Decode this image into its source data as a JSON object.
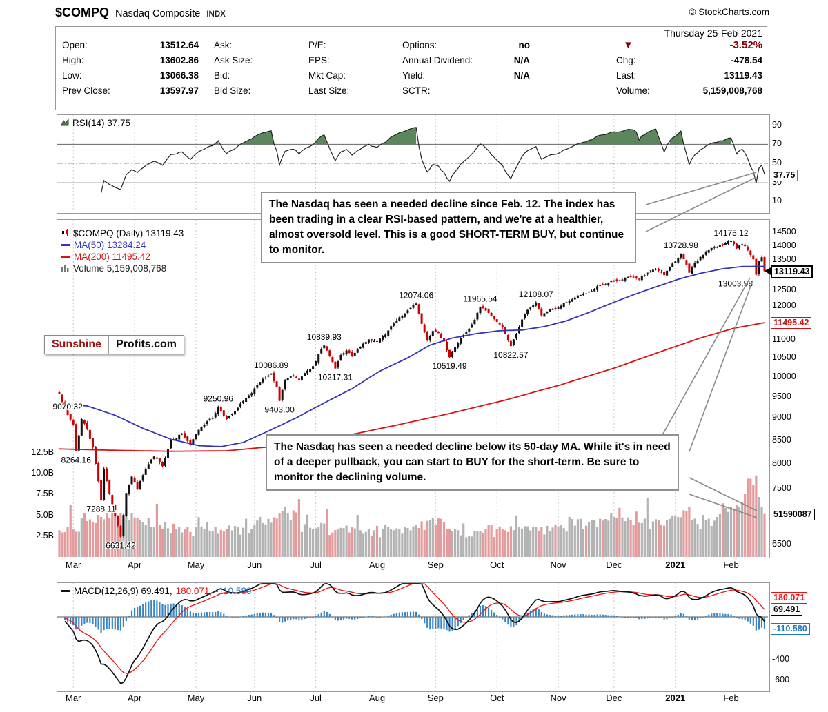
{
  "header": {
    "symbol": "$COMPQ",
    "name": "Nasdaq Composite",
    "exchange": "INDX",
    "credit": "© StockCharts.com"
  },
  "quote": {
    "date": "Thursday 25-Feb-2021",
    "columns": [
      [
        [
          "Open:",
          "13512.64"
        ],
        [
          "High:",
          "13602.86"
        ],
        [
          "Low:",
          "13066.38"
        ],
        [
          "Prev Close:",
          "13597.97"
        ]
      ],
      [
        [
          "Ask:",
          ""
        ],
        [
          "Ask Size:",
          ""
        ],
        [
          "Bid:",
          ""
        ],
        [
          "Bid Size:",
          ""
        ]
      ],
      [
        [
          "P/E:",
          ""
        ],
        [
          "EPS:",
          ""
        ],
        [
          "Mkt Cap:",
          ""
        ],
        [
          "Last Size:",
          ""
        ]
      ],
      [
        [
          "Options:",
          "no"
        ],
        [
          "Annual Dividend:",
          "N/A"
        ],
        [
          "Yield:",
          "N/A"
        ],
        [
          "SCTR:",
          ""
        ]
      ]
    ],
    "change": {
      "arrow": "▼",
      "percent": "-3.52%"
    },
    "right_rows": [
      [
        "Chg:",
        "-478.54"
      ],
      [
        "Last:",
        "13119.43"
      ],
      [
        "Volume:",
        "5,159,008,768"
      ]
    ]
  },
  "legends": {
    "rsi": "RSI(14) 37.75",
    "price": "$COMPQ (Daily) 13119.43",
    "ma50": "MA(50) 13284.24",
    "ma200": "MA(200) 11495.42",
    "volume": "Volume 5,159,008,768",
    "macd_black": "MACD(12,26,9) 69.491,",
    "macd_red": "180.071,",
    "macd_blue": "-110.580"
  },
  "boxes": {
    "rsi": "37.75",
    "last": "13119.43",
    "ma200": "11495.42",
    "volume": "51590087",
    "macd_signal": "180.071",
    "macd_line": "69.491",
    "macd_hist": "-110.580"
  },
  "callouts": {
    "box1": "The Nasdaq has seen a needed decline since Feb. 12. The index has been trading in a clear RSI-based pattern, and we're at a healthier, almost oversold level. This is a good SHORT-TERM BUY, but continue to monitor.",
    "box2": "The Nasdaq has seen a needed decline below its 50-day MA. While it's in need of a deeper pullback, you can start to BUY for the short-term. Be sure to monitor the declining volume."
  },
  "logo": {
    "first": "Sunshine",
    "second": "Profits.com"
  },
  "x_axis": {
    "months": [
      "Mar",
      "Apr",
      "May",
      "Jun",
      "Jul",
      "Aug",
      "Sep",
      "Oct",
      "Nov",
      "Dec",
      "2021",
      "Feb"
    ],
    "month_start_days": [
      5,
      27,
      49,
      70,
      92,
      114,
      135,
      157,
      179,
      199,
      221,
      241
    ],
    "total_days": 253,
    "bold_label": "2021"
  },
  "chart_data": [
    {
      "type": "line",
      "panel": "rsi",
      "name": "RSI(14)",
      "last_value": 37.75,
      "ylim": [
        0,
        100
      ],
      "right_ticks": [
        90,
        70,
        50,
        30,
        10
      ],
      "overbought": 70,
      "midline": 50,
      "oversold": 30,
      "line_color": "#222222",
      "overbought_fill": "#4a7a4a"
    },
    {
      "type": "candlestick",
      "panel": "price",
      "name": "$COMPQ (Daily)",
      "last_close": 13119.43,
      "scale": "log",
      "right_ticks": [
        14500,
        14000,
        13500,
        13000,
        12500,
        12000,
        11500,
        11000,
        10500,
        10000,
        9500,
        9000,
        8500,
        8000,
        7500,
        7000,
        6500
      ],
      "up_color": "#111111",
      "down_color": "#cc0000",
      "close_keypoints": [
        [
          0,
          9576
        ],
        [
          2,
          9220
        ],
        [
          3,
          9070.32
        ],
        [
          5,
          8850
        ],
        [
          6,
          8264.16
        ],
        [
          8,
          8970
        ],
        [
          10,
          8740
        ],
        [
          12,
          8340
        ],
        [
          14,
          7650
        ],
        [
          15,
          7288.11
        ],
        [
          16,
          7900
        ],
        [
          18,
          7400
        ],
        [
          20,
          6990
        ],
        [
          22,
          6631.42
        ],
        [
          24,
          7420
        ],
        [
          26,
          7740
        ],
        [
          28,
          7500
        ],
        [
          31,
          7900
        ],
        [
          34,
          8150
        ],
        [
          37,
          7950
        ],
        [
          40,
          8500
        ],
        [
          44,
          8640
        ],
        [
          47,
          8400
        ],
        [
          50,
          8730
        ],
        [
          53,
          8920
        ],
        [
          55,
          9000
        ],
        [
          57,
          9250.96
        ],
        [
          60,
          8970
        ],
        [
          63,
          9150
        ],
        [
          66,
          9400
        ],
        [
          69,
          9590
        ],
        [
          72,
          9870
        ],
        [
          74,
          9980
        ],
        [
          76,
          10086.89
        ],
        [
          78,
          9750
        ],
        [
          79,
          9403
        ],
        [
          81,
          9920
        ],
        [
          84,
          10020
        ],
        [
          86,
          9910
        ],
        [
          88,
          10100
        ],
        [
          91,
          10280
        ],
        [
          93,
          10600
        ],
        [
          95,
          10839.93
        ],
        [
          97,
          10550
        ],
        [
          99,
          10217.31
        ],
        [
          101,
          10580
        ],
        [
          103,
          10700
        ],
        [
          105,
          10550
        ],
        [
          108,
          10790
        ],
        [
          111,
          11010
        ],
        [
          114,
          10950
        ],
        [
          117,
          11150
        ],
        [
          120,
          11470
        ],
        [
          123,
          11700
        ],
        [
          126,
          11940
        ],
        [
          128,
          12074.06
        ],
        [
          130,
          11460
        ],
        [
          132,
          11000
        ],
        [
          134,
          11250
        ],
        [
          136,
          11190
        ],
        [
          138,
          10950
        ],
        [
          140,
          10519.49
        ],
        [
          142,
          10800
        ],
        [
          144,
          11050
        ],
        [
          147,
          11320
        ],
        [
          149,
          11580
        ],
        [
          151,
          11965.54
        ],
        [
          153,
          11860
        ],
        [
          155,
          11680
        ],
        [
          157,
          11520
        ],
        [
          159,
          11360
        ],
        [
          162,
          10822.57
        ],
        [
          164,
          11160
        ],
        [
          166,
          11590
        ],
        [
          168,
          11880
        ],
        [
          171,
          12108.07
        ],
        [
          173,
          11710
        ],
        [
          176,
          11890
        ],
        [
          179,
          11950
        ],
        [
          182,
          12110
        ],
        [
          185,
          12260
        ],
        [
          188,
          12380
        ],
        [
          191,
          12470
        ],
        [
          194,
          12660
        ],
        [
          197,
          12740
        ],
        [
          199,
          12810
        ],
        [
          202,
          12840
        ],
        [
          205,
          12920
        ],
        [
          208,
          12850
        ],
        [
          211,
          13070
        ],
        [
          214,
          13200
        ],
        [
          217,
          12990
        ],
        [
          219,
          13270
        ],
        [
          221,
          13450
        ],
        [
          223,
          13728.98
        ],
        [
          225,
          13340
        ],
        [
          226,
          13070
        ],
        [
          228,
          13400
        ],
        [
          230,
          13610
        ],
        [
          233,
          13860
        ],
        [
          236,
          13970
        ],
        [
          239,
          14100
        ],
        [
          241,
          14175.12
        ],
        [
          243,
          13910
        ],
        [
          245,
          14060
        ],
        [
          247,
          13870
        ],
        [
          249,
          13530
        ],
        [
          250,
          13003.98
        ],
        [
          251,
          13470
        ],
        [
          252,
          13597.97
        ],
        [
          253,
          13119.43
        ]
      ],
      "ma50": {
        "name": "MA(50)",
        "last": 13284.24,
        "color": "#3434bb",
        "keypoints": [
          [
            0,
            9320
          ],
          [
            10,
            9280
          ],
          [
            20,
            9060
          ],
          [
            30,
            8760
          ],
          [
            40,
            8520
          ],
          [
            50,
            8380
          ],
          [
            58,
            8360
          ],
          [
            66,
            8450
          ],
          [
            75,
            8700
          ],
          [
            85,
            9000
          ],
          [
            95,
            9350
          ],
          [
            105,
            9700
          ],
          [
            115,
            10150
          ],
          [
            125,
            10500
          ],
          [
            133,
            10850
          ],
          [
            141,
            11050
          ],
          [
            150,
            11180
          ],
          [
            158,
            11260
          ],
          [
            166,
            11280
          ],
          [
            174,
            11380
          ],
          [
            182,
            11550
          ],
          [
            190,
            11800
          ],
          [
            198,
            12080
          ],
          [
            206,
            12350
          ],
          [
            214,
            12600
          ],
          [
            222,
            12850
          ],
          [
            230,
            13050
          ],
          [
            238,
            13200
          ],
          [
            245,
            13280
          ],
          [
            253,
            13284.24
          ]
        ]
      },
      "ma200": {
        "name": "MA(200)",
        "last": 11495.42,
        "color": "#dd1111",
        "keypoints": [
          [
            0,
            8310
          ],
          [
            20,
            8280
          ],
          [
            40,
            8260
          ],
          [
            60,
            8270
          ],
          [
            80,
            8380
          ],
          [
            100,
            8560
          ],
          [
            120,
            8820
          ],
          [
            140,
            9100
          ],
          [
            160,
            9420
          ],
          [
            180,
            9800
          ],
          [
            200,
            10250
          ],
          [
            215,
            10650
          ],
          [
            230,
            11050
          ],
          [
            242,
            11330
          ],
          [
            253,
            11495.42
          ]
        ]
      },
      "volume": {
        "last_label": "5,159,008,768",
        "left_ticks_B": [
          12.5,
          10.0,
          7.5,
          5.0,
          2.5
        ],
        "up_color": "#b3b3b3",
        "down_color": "#e39b9b",
        "keypoints_B": [
          [
            0,
            3.2
          ],
          [
            10,
            4.3
          ],
          [
            15,
            4.8
          ],
          [
            22,
            5.3
          ],
          [
            30,
            4.2
          ],
          [
            45,
            3.3
          ],
          [
            60,
            3.4
          ],
          [
            70,
            3.8
          ],
          [
            79,
            5.2
          ],
          [
            90,
            3.5
          ],
          [
            100,
            3.3
          ],
          [
            110,
            3.0
          ],
          [
            120,
            3.2
          ],
          [
            128,
            3.8
          ],
          [
            133,
            4.4
          ],
          [
            140,
            3.4
          ],
          [
            150,
            3.1
          ],
          [
            160,
            3.2
          ],
          [
            170,
            3.6
          ],
          [
            180,
            3.8
          ],
          [
            190,
            4.2
          ],
          [
            199,
            4.8
          ],
          [
            205,
            4.4
          ],
          [
            210,
            4.6
          ],
          [
            215,
            4.4
          ],
          [
            221,
            5.0
          ],
          [
            224,
            5.6
          ],
          [
            228,
            4.6
          ],
          [
            232,
            4.4
          ],
          [
            236,
            4.8
          ],
          [
            240,
            5.4
          ],
          [
            243,
            6.2
          ],
          [
            246,
            7.6
          ],
          [
            248,
            9.4
          ],
          [
            250,
            9.8
          ],
          [
            251,
            7.2
          ],
          [
            252,
            6.0
          ],
          [
            253,
            5.16
          ]
        ]
      },
      "swing_labels": [
        [
          3,
          9070.32,
          "above"
        ],
        [
          6,
          8264.16,
          "below"
        ],
        [
          15,
          7288.11,
          "below"
        ],
        [
          22,
          6631.42,
          "below"
        ],
        [
          57,
          9250.96,
          "above"
        ],
        [
          76,
          10086.89,
          "above"
        ],
        [
          79,
          9403.0,
          "below"
        ],
        [
          95,
          10839.93,
          "above"
        ],
        [
          99,
          10217.31,
          "below"
        ],
        [
          128,
          12074.06,
          "above"
        ],
        [
          140,
          10519.49,
          "below"
        ],
        [
          151,
          11965.54,
          "above"
        ],
        [
          162,
          10822.57,
          "below"
        ],
        [
          171,
          12108.07,
          "above"
        ],
        [
          223,
          13728.98,
          "above"
        ],
        [
          241,
          14175.12,
          "above"
        ],
        [
          250,
          13003.98,
          "below"
        ]
      ]
    },
    {
      "type": "macd",
      "panel": "macd",
      "name": "MACD(12,26,9)",
      "macd_line": 69.491,
      "signal_line": 180.071,
      "histogram": -110.58,
      "right_ticks": [
        -400,
        -600
      ],
      "params": [
        12,
        26,
        9
      ],
      "line_color": "#111111",
      "signal_color": "#ee1111",
      "hist_color": "#3a85c0"
    }
  ]
}
